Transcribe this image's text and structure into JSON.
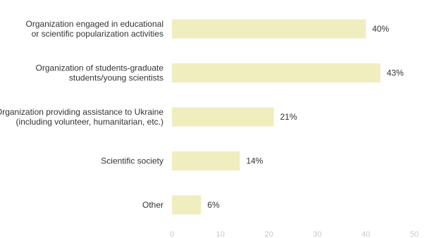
{
  "chart_data": {
    "type": "bar",
    "orientation": "horizontal",
    "categories": [
      [
        "Organization engaged in educational",
        "or scientific popularization activities"
      ],
      [
        "Organization of students-graduate",
        "students/young scientists"
      ],
      [
        "Organization providing assistance to Ukraine",
        "(including volunteer, humanitarian, etc.)"
      ],
      [
        "Scientific society"
      ],
      [
        "Other"
      ]
    ],
    "values": [
      40,
      43,
      21,
      14,
      6
    ],
    "value_labels": [
      "40%",
      "43%",
      "21%",
      "14%",
      "6%"
    ],
    "xlim": [
      0,
      50
    ],
    "xticks": [
      0,
      10,
      20,
      30,
      40,
      50
    ],
    "xtick_labels": [
      "0",
      "10",
      "20",
      "30",
      "40",
      "50"
    ],
    "bar_color": "#f0edbe",
    "grid": false,
    "legend": "none"
  }
}
